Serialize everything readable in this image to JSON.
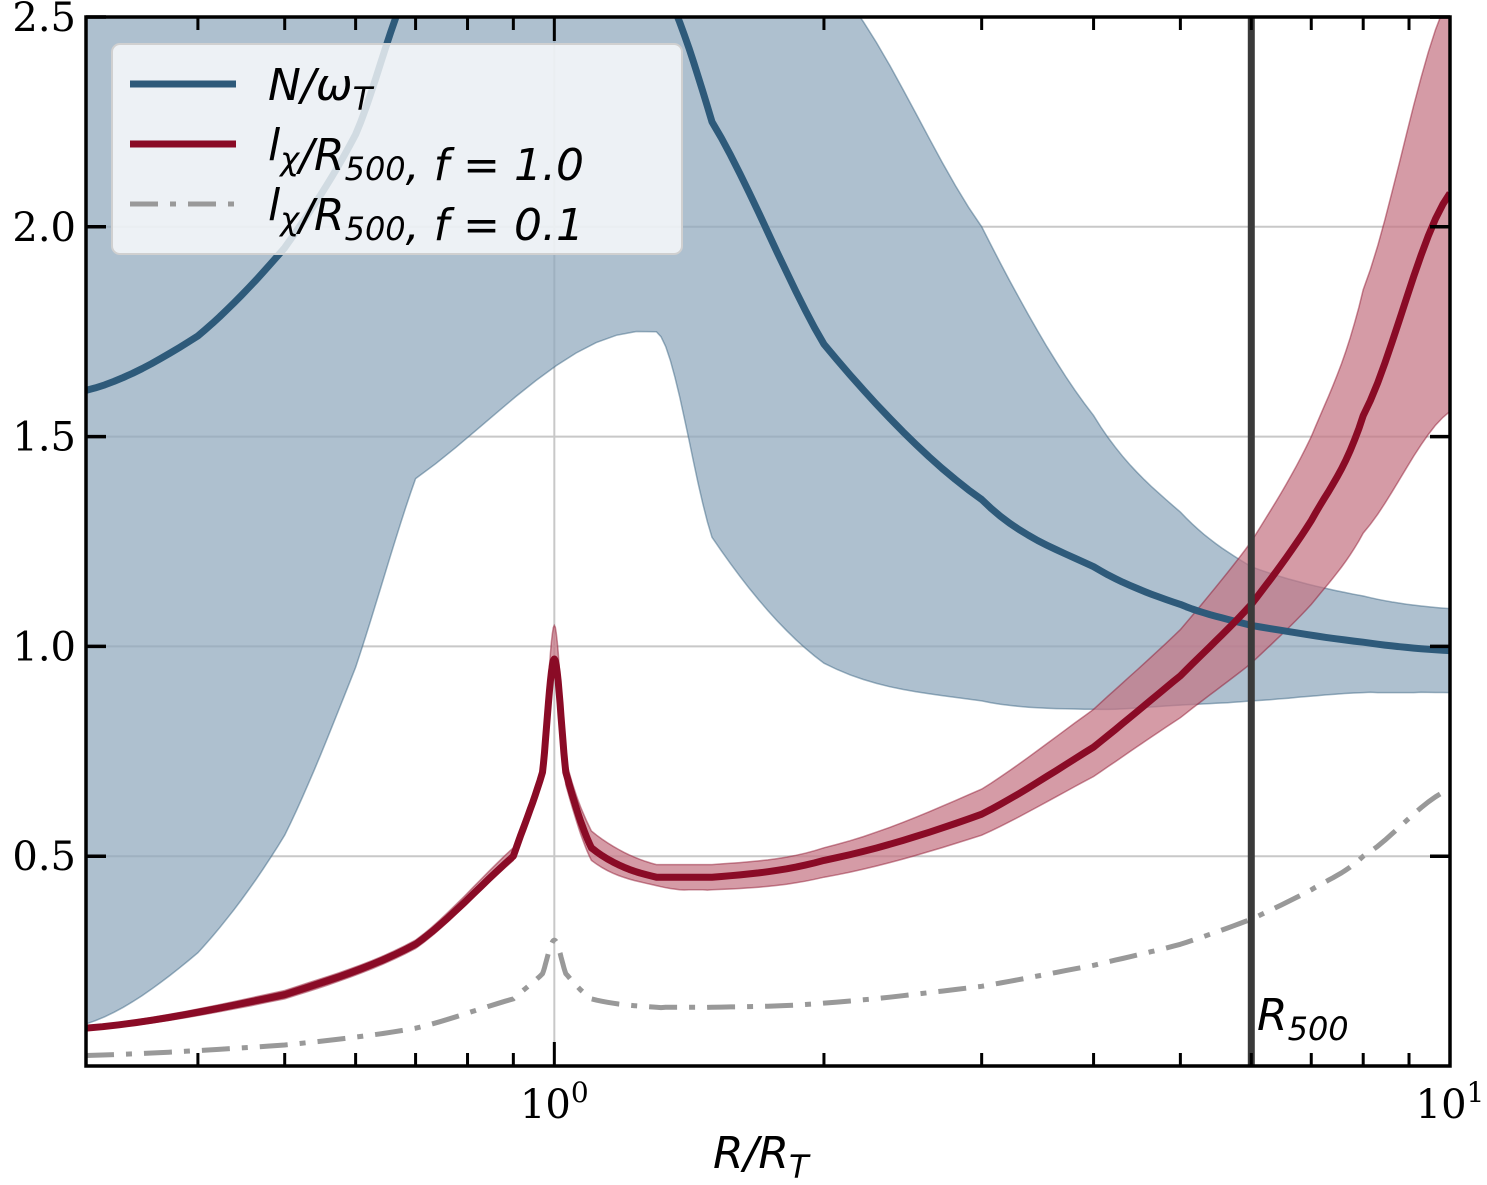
{
  "chart_data": {
    "type": "line",
    "xlabel": "R/R_T",
    "xscale": "log",
    "xlim": [
      0.3,
      10
    ],
    "ylim": [
      0,
      2.5
    ],
    "yticks": [
      0.5,
      1.0,
      1.5,
      2.0,
      2.5
    ],
    "ytick_labels": [
      "0.5",
      "1.0",
      "1.5",
      "2.0",
      "2.5"
    ],
    "xticks_major": [
      1,
      10
    ],
    "xtick_labels": [
      "10^0",
      "10^1"
    ],
    "grid": true,
    "legend_position": "top-left",
    "colors": {
      "blue": "#2e5a7a",
      "blue_band": "#8fa8bc",
      "red": "#8a0b26",
      "red_band": "#c57484",
      "gray": "#999999",
      "vline": "#3a3a3a"
    },
    "series": [
      {
        "name": "N/ω_T",
        "style": "solid",
        "color": "blue",
        "x": [
          0.3,
          0.4,
          0.5,
          0.6,
          0.7,
          1.3,
          1.5,
          2.0,
          3.0,
          4.0,
          5.0,
          6.0,
          8.0,
          10.0
        ],
        "y": [
          1.61,
          1.74,
          1.95,
          2.22,
          2.6,
          2.6,
          2.25,
          1.72,
          1.35,
          1.19,
          1.1,
          1.05,
          1.01,
          0.99
        ],
        "band_lower": [
          0.1,
          0.27,
          0.55,
          0.95,
          1.4,
          1.75,
          1.26,
          0.96,
          0.87,
          0.85,
          0.86,
          0.87,
          0.89,
          0.89
        ],
        "band_upper": [
          2.6,
          2.6,
          2.6,
          2.6,
          2.6,
          2.6,
          2.6,
          2.6,
          2.0,
          1.55,
          1.32,
          1.19,
          1.12,
          1.09
        ]
      },
      {
        "name": "l_χ/R_500, f = 1.0",
        "style": "solid",
        "color": "red",
        "x": [
          0.3,
          0.5,
          0.7,
          0.9,
          0.97,
          1.0,
          1.03,
          1.1,
          1.3,
          1.5,
          2.0,
          3.0,
          4.0,
          5.0,
          6.0,
          7.0,
          8.0,
          10.0
        ],
        "y": [
          0.09,
          0.17,
          0.29,
          0.5,
          0.7,
          0.97,
          0.7,
          0.52,
          0.45,
          0.45,
          0.49,
          0.6,
          0.76,
          0.93,
          1.1,
          1.3,
          1.55,
          2.08
        ],
        "band_lower": [
          0.085,
          0.16,
          0.28,
          0.49,
          0.68,
          0.93,
          0.67,
          0.49,
          0.43,
          0.42,
          0.45,
          0.55,
          0.69,
          0.83,
          0.96,
          1.1,
          1.27,
          1.56
        ],
        "band_upper": [
          0.095,
          0.18,
          0.3,
          0.52,
          0.72,
          1.05,
          0.73,
          0.56,
          0.48,
          0.48,
          0.52,
          0.66,
          0.85,
          1.04,
          1.25,
          1.5,
          1.85,
          2.55
        ]
      },
      {
        "name": "l_χ/R_500, f = 0.1",
        "style": "dashdot",
        "color": "gray",
        "x": [
          0.3,
          0.5,
          0.7,
          0.9,
          0.97,
          1.0,
          1.03,
          1.1,
          1.3,
          1.5,
          2.0,
          3.0,
          4.0,
          5.0,
          6.0,
          7.0,
          8.0,
          10.0
        ],
        "y": [
          0.025,
          0.05,
          0.09,
          0.16,
          0.22,
          0.3,
          0.22,
          0.16,
          0.14,
          0.14,
          0.15,
          0.19,
          0.24,
          0.29,
          0.35,
          0.42,
          0.5,
          0.66
        ]
      }
    ],
    "vline": {
      "x": 6.0,
      "label": "R_500"
    }
  }
}
